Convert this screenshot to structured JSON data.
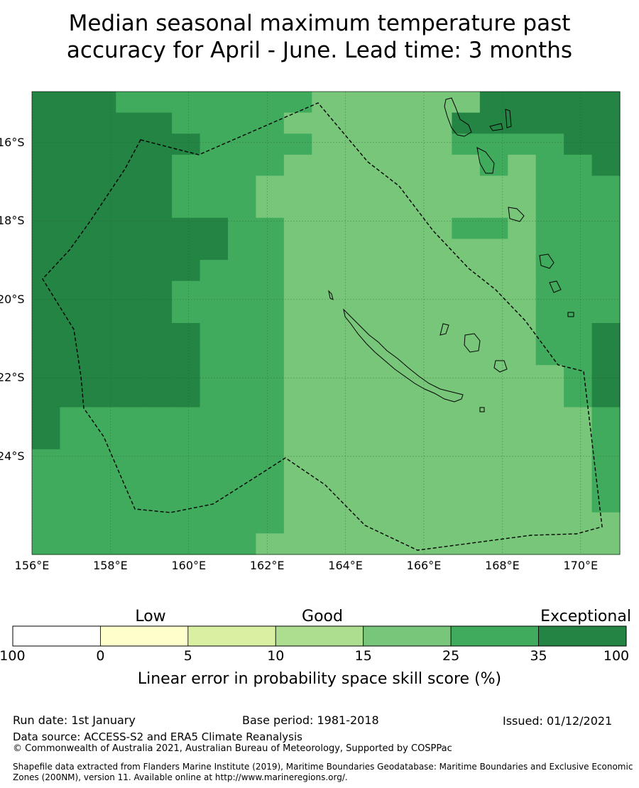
{
  "title": {
    "line1": "Median seasonal maximum temperature past",
    "line2": "accuracy for April - June. Lead time: 3 months"
  },
  "map": {
    "lon_range": [
      156,
      171
    ],
    "lat_range": [
      -26.5,
      -14.7
    ],
    "lat_labels": [
      "16°S",
      "18°S",
      "20°S",
      "22°S",
      "24°S"
    ],
    "lat_values": [
      -16,
      -18,
      -20,
      -22,
      -24
    ],
    "lon_labels": [
      "156°E",
      "158°E",
      "160°E",
      "162°E",
      "164°E",
      "166°E",
      "168°E",
      "170°E"
    ],
    "lon_values": [
      156,
      158,
      160,
      162,
      164,
      166,
      168,
      170
    ],
    "palette": [
      "#ffffff",
      "#ffffcc",
      "#d9f0a3",
      "#addd8e",
      "#78c679",
      "#41ab5d",
      "#238443"
    ],
    "grid_rows": [
      "666555555544444466666",
      "666665555444444666666",
      "666666555544444555566",
      "666665555444444454556",
      "666665554444444444555",
      "666665554444444444555",
      "666666655444444554555",
      "666666655444444444555",
      "666666555444444444555",
      "666665555444444444555",
      "666665555444444444555",
      "666666555444444444556",
      "666666555444444444556",
      "666666555444444444456",
      "666666555444444444456",
      "655555555444444444445",
      "655555555444444444445",
      "555555555444444444445",
      "555555555444444444445",
      "555555555444444444445",
      "555555555444444444444",
      "555555554444444444444"
    ]
  },
  "colorbar": {
    "categories": [
      "Low",
      "Good",
      "Exceptional"
    ],
    "ticks": [
      "-100",
      "0",
      "5",
      "10",
      "15",
      "25",
      "35",
      "100"
    ],
    "label": "Linear error in probability space skill score (%)"
  },
  "footer": {
    "run_date": "Run date: 1st January",
    "base_period": "Base period: 1981-2018",
    "issued": "Issued: 01/12/2021",
    "data_source": "Data source: ACCESS-S2 and ERA5 Climate Reanalysis",
    "copyright": "© Commonwealth of Australia 2021, Australian Bureau of Meteorology, Supported by COSPPac",
    "shapefile": "Shapefile data extracted from Flanders Marine Institute (2019), Maritime Boundaries Geodatabase: Maritime Boundaries and Exclusive Economic Zones (200NM), version 11. Available online at http://www.marineregions.org/."
  }
}
